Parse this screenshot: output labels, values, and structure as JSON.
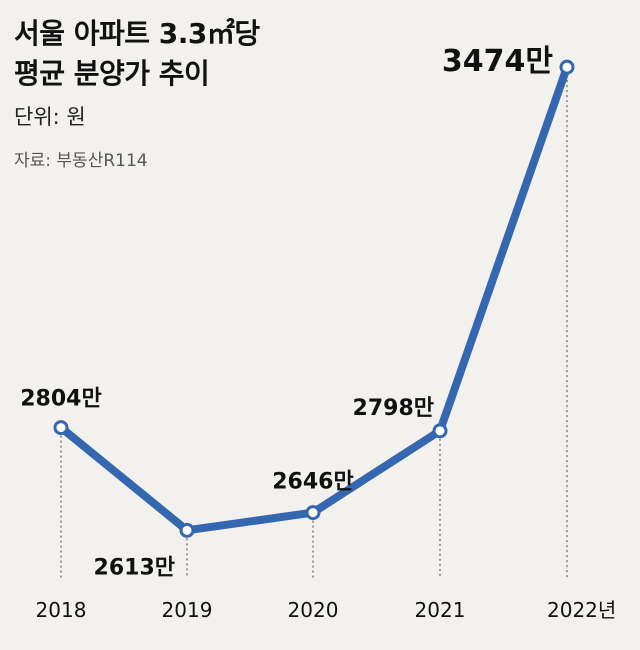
{
  "header": {
    "title_line1": "서울 아파트 3.3㎡당",
    "title_line2": "평균 분양가 추이",
    "unit": "단위: 원",
    "source": "자료: 부동산R114"
  },
  "colors": {
    "line": "#3567b0",
    "background": "#f3f1ee",
    "marker_fill": "#ffffff",
    "guide": "#444444"
  },
  "chart_data": {
    "type": "line",
    "categories": [
      "2018",
      "2019",
      "2020",
      "2021",
      "2022"
    ],
    "x_tick_labels": [
      "2018",
      "2019",
      "2020",
      "2021",
      "2022년"
    ],
    "series": [
      {
        "values": [
          2804,
          2613,
          2646,
          2798,
          3474
        ]
      }
    ],
    "value_labels": [
      "2804만",
      "2613만",
      "2646만",
      "2798만",
      "3474만"
    ],
    "ylim": [
      2530,
      3530
    ],
    "grid": false,
    "legend": "none"
  }
}
